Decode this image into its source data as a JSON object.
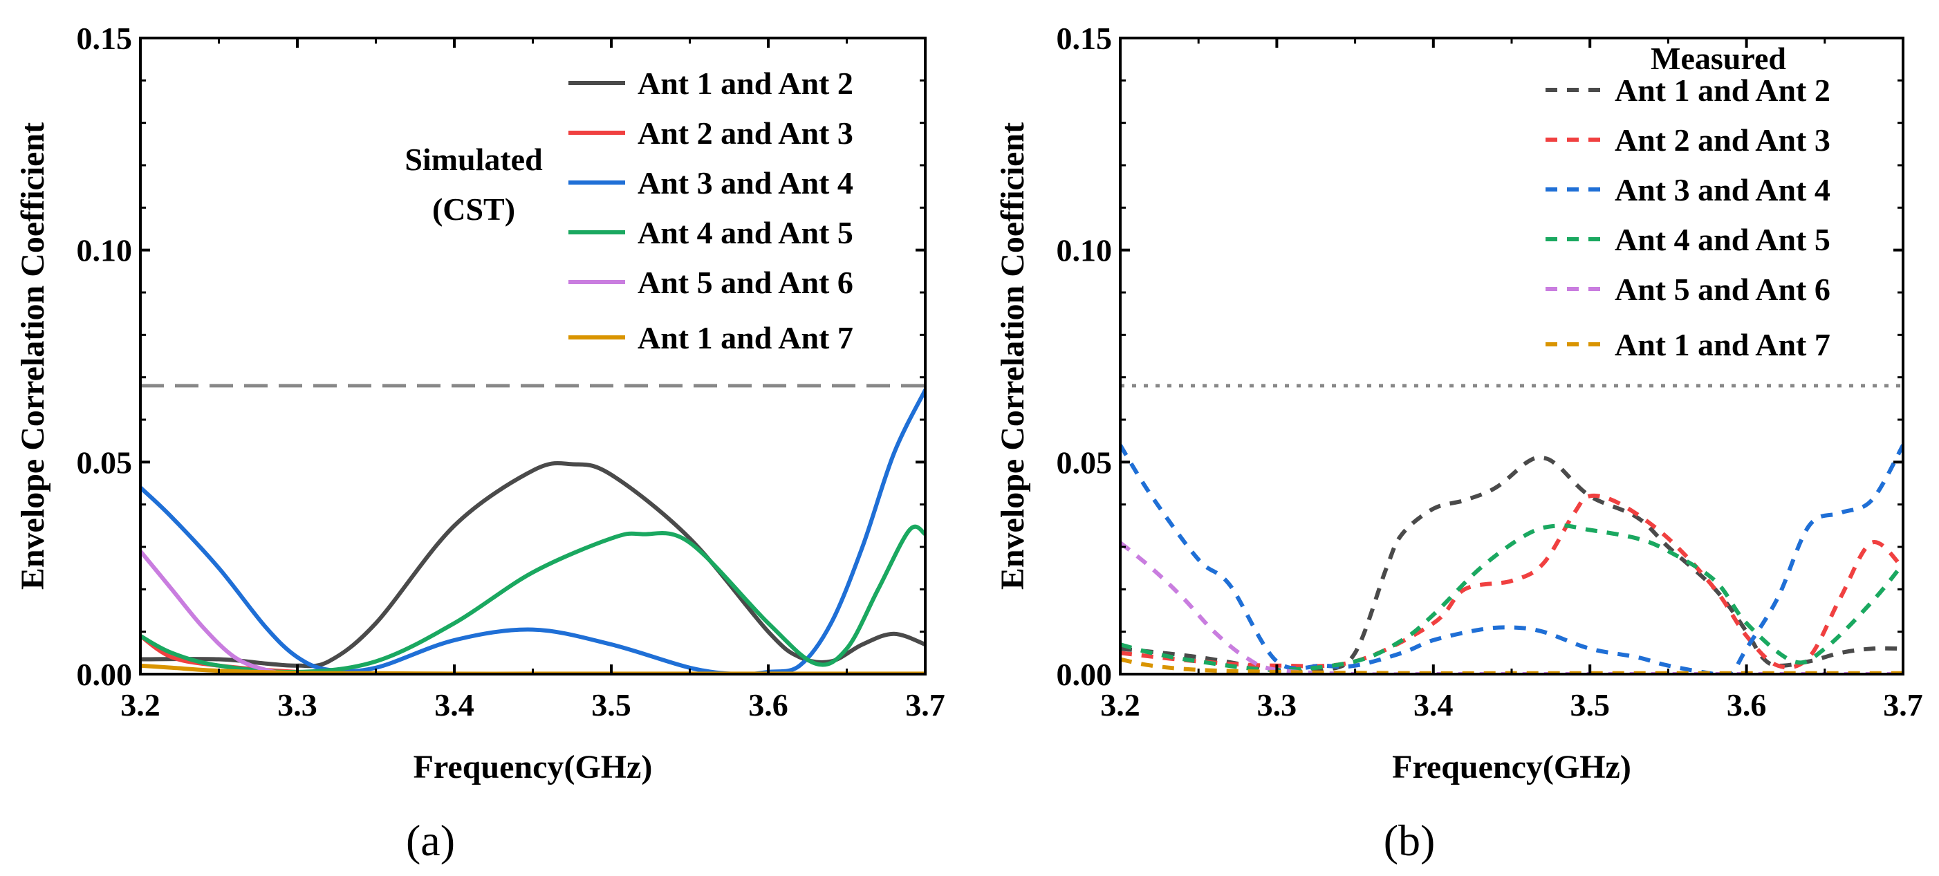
{
  "colors": {
    "ant12": "#4a4a4a",
    "ant23": "#f04040",
    "ant34": "#1f6fd6",
    "ant45": "#1aa860",
    "ant56": "#c97ddf",
    "ant17": "#d99400",
    "threshold": "#888888"
  },
  "chart_data": [
    {
      "type": "line",
      "panel": "a",
      "caption": "(a)",
      "annotation": [
        "Simulated",
        "(CST)"
      ],
      "legend_title": "",
      "xlabel": "Frequency(GHz)",
      "ylabel": "Envelope Correlation Coefficient",
      "xlim": [
        3.2,
        3.7
      ],
      "ylim": [
        0,
        0.15
      ],
      "xticks": [
        "3.2",
        "3.3",
        "3.4",
        "3.5",
        "3.6",
        "3.7"
      ],
      "yticks": [
        "0.00",
        "0.05",
        "0.10",
        "0.15"
      ],
      "threshold": 0.068,
      "threshold_style": "dashed",
      "line_style": "solid",
      "legend_position": "top-right",
      "series": [
        {
          "name": "Ant 1 and Ant 2",
          "color_key": "ant12",
          "x": [
            3.2,
            3.25,
            3.28,
            3.3,
            3.32,
            3.35,
            3.4,
            3.45,
            3.475,
            3.5,
            3.55,
            3.6,
            3.62,
            3.64,
            3.66,
            3.68,
            3.7
          ],
          "y": [
            0.0035,
            0.0035,
            0.0025,
            0.002,
            0.003,
            0.012,
            0.035,
            0.048,
            0.0495,
            0.047,
            0.032,
            0.01,
            0.004,
            0.003,
            0.007,
            0.0095,
            0.007
          ]
        },
        {
          "name": "Ant 2 and Ant 3",
          "color_key": "ant23",
          "x": [
            3.2,
            3.22,
            3.25,
            3.3,
            3.35,
            3.4,
            3.45,
            3.5,
            3.55,
            3.6,
            3.65,
            3.7
          ],
          "y": [
            0.009,
            0.004,
            0.002,
            0.0005,
            0,
            0,
            0,
            0,
            0,
            0,
            0,
            0
          ]
        },
        {
          "name": "Ant 3 and Ant 4",
          "color_key": "ant34",
          "x": [
            3.2,
            3.22,
            3.25,
            3.28,
            3.3,
            3.32,
            3.35,
            3.4,
            3.45,
            3.5,
            3.55,
            3.58,
            3.6,
            3.62,
            3.64,
            3.66,
            3.68,
            3.7
          ],
          "y": [
            0.044,
            0.037,
            0.025,
            0.011,
            0.004,
            0.001,
            0.0015,
            0.008,
            0.0105,
            0.007,
            0.0015,
            0,
            0.0005,
            0.002,
            0.012,
            0.03,
            0.052,
            0.067
          ]
        },
        {
          "name": "Ant 4 and Ant 5",
          "color_key": "ant45",
          "x": [
            3.2,
            3.22,
            3.25,
            3.3,
            3.35,
            3.4,
            3.45,
            3.5,
            3.52,
            3.55,
            3.6,
            3.63,
            3.65,
            3.67,
            3.69,
            3.7
          ],
          "y": [
            0.009,
            0.005,
            0.002,
            0.0005,
            0.003,
            0.012,
            0.024,
            0.032,
            0.033,
            0.031,
            0.012,
            0.0025,
            0.006,
            0.02,
            0.034,
            0.033
          ]
        },
        {
          "name": "Ant 5 and Ant 6",
          "color_key": "ant56",
          "x": [
            3.2,
            3.22,
            3.24,
            3.26,
            3.28,
            3.3,
            3.35,
            3.4,
            3.45,
            3.5,
            3.55,
            3.6,
            3.65,
            3.7
          ],
          "y": [
            0.029,
            0.02,
            0.011,
            0.004,
            0.001,
            0,
            0,
            0,
            0,
            0,
            0,
            0,
            0,
            0
          ]
        },
        {
          "name": "Ant 1 and Ant 7",
          "color_key": "ant17",
          "x": [
            3.2,
            3.22,
            3.25,
            3.3,
            3.35,
            3.4,
            3.45,
            3.5,
            3.55,
            3.6,
            3.65,
            3.7
          ],
          "y": [
            0.002,
            0.0015,
            0.0008,
            0.0003,
            0.0002,
            0.0001,
            0.0001,
            0.0001,
            0.0001,
            0.0001,
            0.0001,
            0.0001
          ]
        }
      ]
    },
    {
      "type": "line",
      "panel": "b",
      "caption": "(b)",
      "annotation": [],
      "legend_title": "Measured",
      "xlabel": "Frequency(GHz)",
      "ylabel": "Envelope Correlation Coefficient",
      "xlim": [
        3.2,
        3.7
      ],
      "ylim": [
        0,
        0.15
      ],
      "xticks": [
        "3.2",
        "3.3",
        "3.4",
        "3.5",
        "3.6",
        "3.7"
      ],
      "yticks": [
        "0.00",
        "0.05",
        "0.10",
        "0.15"
      ],
      "threshold": 0.068,
      "threshold_style": "dotted",
      "line_style": "dashed",
      "legend_position": "top-right",
      "series": [
        {
          "name": "Ant 1 and Ant 2",
          "color_key": "ant12",
          "x": [
            3.2,
            3.25,
            3.3,
            3.33,
            3.35,
            3.37,
            3.38,
            3.4,
            3.42,
            3.44,
            3.46,
            3.47,
            3.48,
            3.5,
            3.53,
            3.55,
            3.58,
            3.6,
            3.61,
            3.62,
            3.64,
            3.66,
            3.68,
            3.7
          ],
          "y": [
            0.006,
            0.004,
            0.001,
            0.001,
            0.005,
            0.025,
            0.033,
            0.039,
            0.041,
            0.044,
            0.05,
            0.051,
            0.049,
            0.042,
            0.037,
            0.03,
            0.02,
            0.01,
            0.004,
            0.002,
            0.003,
            0.005,
            0.006,
            0.006
          ]
        },
        {
          "name": "Ant 2 and Ant 3",
          "color_key": "ant23",
          "x": [
            3.2,
            3.25,
            3.3,
            3.35,
            3.4,
            3.42,
            3.45,
            3.47,
            3.49,
            3.5,
            3.52,
            3.55,
            3.58,
            3.6,
            3.62,
            3.64,
            3.66,
            3.68,
            3.7
          ],
          "y": [
            0.005,
            0.003,
            0.002,
            0.003,
            0.012,
            0.02,
            0.022,
            0.026,
            0.038,
            0.042,
            0.04,
            0.032,
            0.02,
            0.009,
            0.002,
            0.004,
            0.018,
            0.031,
            0.025
          ]
        },
        {
          "name": "Ant 3 and Ant 4",
          "color_key": "ant34",
          "x": [
            3.2,
            3.22,
            3.25,
            3.27,
            3.3,
            3.33,
            3.35,
            3.38,
            3.4,
            3.43,
            3.45,
            3.47,
            3.5,
            3.53,
            3.55,
            3.58,
            3.59,
            3.6,
            3.62,
            3.64,
            3.66,
            3.68,
            3.7
          ],
          "y": [
            0.054,
            0.042,
            0.027,
            0.021,
            0.003,
            0.002,
            0.002,
            0.005,
            0.008,
            0.0105,
            0.011,
            0.01,
            0.006,
            0.004,
            0.002,
            0,
            0,
            0.006,
            0.018,
            0.035,
            0.038,
            0.041,
            0.054
          ]
        },
        {
          "name": "Ant 4 and Ant 5",
          "color_key": "ant45",
          "x": [
            3.2,
            3.22,
            3.25,
            3.3,
            3.35,
            3.38,
            3.4,
            3.43,
            3.46,
            3.48,
            3.5,
            3.53,
            3.55,
            3.58,
            3.6,
            3.63,
            3.65,
            3.68,
            3.7
          ],
          "y": [
            0.007,
            0.005,
            0.003,
            0.001,
            0.003,
            0.008,
            0.014,
            0.025,
            0.033,
            0.035,
            0.034,
            0.032,
            0.029,
            0.022,
            0.012,
            0.003,
            0.006,
            0.017,
            0.026
          ]
        },
        {
          "name": "Ant 5 and Ant 6",
          "color_key": "ant56",
          "x": [
            3.2,
            3.22,
            3.24,
            3.26,
            3.28,
            3.3,
            3.35,
            3.4,
            3.45,
            3.5,
            3.55,
            3.6,
            3.65,
            3.7
          ],
          "y": [
            0.031,
            0.025,
            0.018,
            0.01,
            0.004,
            0.001,
            0,
            0,
            0,
            0,
            0,
            0,
            0,
            0
          ]
        },
        {
          "name": "Ant 1 and Ant 7",
          "color_key": "ant17",
          "x": [
            3.2,
            3.22,
            3.25,
            3.3,
            3.35,
            3.4,
            3.45,
            3.5,
            3.55,
            3.6,
            3.65,
            3.7
          ],
          "y": [
            0.0035,
            0.002,
            0.001,
            0.0005,
            0.0003,
            0.0002,
            0.0002,
            0.0002,
            0.0002,
            0.0002,
            0.0002,
            0.0002
          ]
        }
      ]
    }
  ]
}
